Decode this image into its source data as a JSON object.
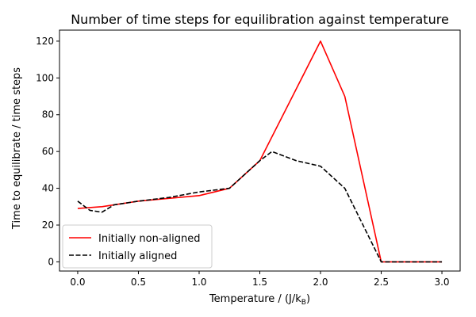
{
  "chart_data": {
    "type": "line",
    "title": "Number of time steps for equilibration against temperature",
    "xlabel": "Temperature / (J/k",
    "xlabel_sub": "B",
    "xlabel_end": ")",
    "ylabel": "Time to equilibrate / time steps",
    "xlim": [
      -0.15,
      3.15
    ],
    "ylim": [
      -5,
      126
    ],
    "xticks": [
      0.0,
      0.5,
      1.0,
      1.5,
      2.0,
      2.5,
      3.0
    ],
    "xtick_labels": [
      "0.0",
      "0.5",
      "1.0",
      "1.5",
      "2.0",
      "2.5",
      "3.0"
    ],
    "yticks": [
      0,
      20,
      40,
      60,
      80,
      100,
      120
    ],
    "ytick_labels": [
      "0",
      "20",
      "40",
      "60",
      "80",
      "100",
      "120"
    ],
    "grid": false,
    "legend_position": "lower-left",
    "series": [
      {
        "name": "Initially non-aligned",
        "color": "#ff0000",
        "dash": "solid",
        "points": [
          [
            0.0,
            29
          ],
          [
            0.2,
            30
          ],
          [
            0.3,
            31
          ],
          [
            0.5,
            33
          ],
          [
            1.0,
            36
          ],
          [
            1.25,
            40
          ],
          [
            1.5,
            55
          ],
          [
            2.0,
            120
          ],
          [
            2.2,
            90
          ],
          [
            2.5,
            0
          ],
          [
            3.0,
            0
          ]
        ]
      },
      {
        "name": "Initially aligned",
        "color": "#000000",
        "dash": "dashed",
        "points": [
          [
            0.0,
            33
          ],
          [
            0.1,
            28
          ],
          [
            0.2,
            27
          ],
          [
            0.3,
            31
          ],
          [
            0.5,
            33
          ],
          [
            0.75,
            35
          ],
          [
            1.0,
            38
          ],
          [
            1.25,
            40
          ],
          [
            1.5,
            55
          ],
          [
            1.6,
            60
          ],
          [
            1.8,
            55
          ],
          [
            2.0,
            52
          ],
          [
            2.2,
            40
          ],
          [
            2.5,
            0
          ],
          [
            3.0,
            0
          ]
        ]
      }
    ]
  }
}
